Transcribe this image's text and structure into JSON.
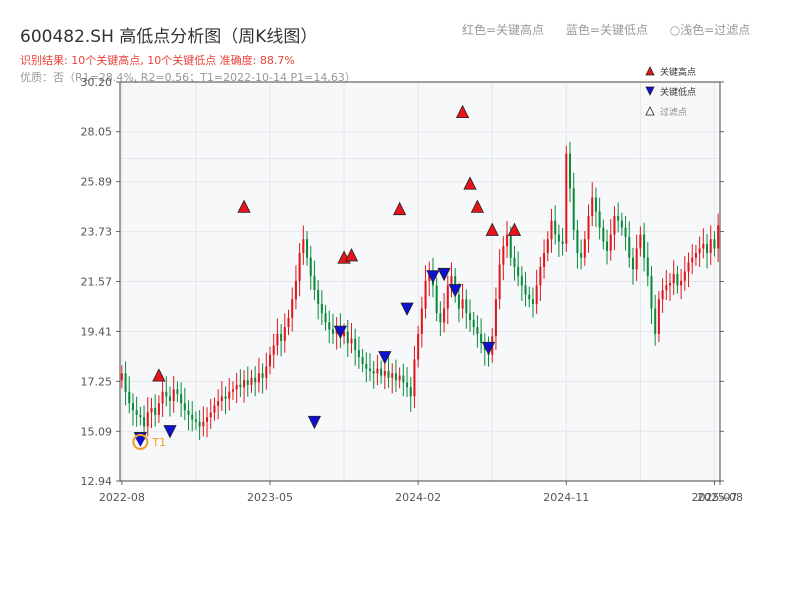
{
  "header": {
    "title": "600482.SH 高低点分析图（周K线图）",
    "result_line": "识别结果: 10个关键高点, 10个关键低点  准确度: 88.7%",
    "quality_line": "优质：否（R1=28.4%, R2=0.56；T1=2022-10-14 P1=14.63）"
  },
  "top_legend": {
    "red": "红色=关键高点",
    "blue": "蓝色=关键低点",
    "light": "○浅色=过滤点"
  },
  "colors": {
    "up": "#e0161c",
    "down": "#0a8a3a",
    "high_marker": "#e8141c",
    "low_marker": "#1010d0",
    "t1_ring": "#f0a020",
    "plot_bg": "#f7f8fa",
    "grid": "#e3e6ea"
  },
  "chart_data": {
    "type": "candlestick",
    "y_ticks": [
      "12.94",
      "15.09",
      "17.25",
      "19.41",
      "21.57",
      "23.73",
      "25.89",
      "28.05",
      "30.20"
    ],
    "ylim": [
      12.94,
      30.2
    ],
    "x_ticks": [
      {
        "label": "2022-08",
        "x": 0
      },
      {
        "label": "2023-05",
        "x": 40
      },
      {
        "label": "2024-02",
        "x": 80
      },
      {
        "label": "2024-11",
        "x": 120
      },
      {
        "label": "2025-07",
        "x": 160
      },
      {
        "label": "2025-08",
        "x": 164
      }
    ],
    "x_range": [
      -0.5,
      161.5
    ],
    "weekly_close_approx": [
      17.6,
      16.8,
      16.3,
      16.0,
      15.8,
      15.7,
      15.3,
      15.9,
      16.1,
      15.8,
      16.3,
      16.8,
      16.6,
      16.4,
      16.9,
      16.7,
      16.3,
      16.0,
      15.8,
      15.6,
      15.5,
      15.3,
      15.5,
      15.7,
      15.9,
      16.2,
      16.4,
      16.6,
      16.5,
      16.8,
      16.9,
      17.1,
      17.0,
      17.3,
      17.1,
      17.4,
      17.2,
      17.6,
      17.4,
      17.9,
      18.4,
      18.8,
      19.3,
      19.0,
      19.6,
      20.0,
      20.8,
      21.6,
      22.8,
      23.4,
      22.6,
      21.8,
      21.2,
      20.6,
      20.2,
      19.8,
      19.5,
      19.3,
      19.6,
      19.2,
      19.4,
      18.9,
      19.1,
      18.6,
      18.3,
      18.0,
      17.8,
      17.7,
      17.6,
      17.8,
      17.5,
      17.7,
      17.4,
      17.6,
      17.3,
      17.5,
      17.2,
      17.0,
      16.6,
      18.2,
      19.3,
      20.4,
      21.6,
      22.0,
      21.4,
      20.2,
      19.8,
      20.4,
      21.4,
      21.8,
      21.0,
      20.4,
      20.8,
      20.2,
      19.9,
      19.6,
      19.3,
      18.9,
      18.6,
      18.4,
      19.2,
      20.8,
      22.3,
      23.1,
      23.6,
      22.6,
      22.2,
      21.8,
      21.4,
      21.0,
      20.8,
      20.6,
      21.4,
      22.2,
      22.8,
      23.4,
      24.2,
      23.6,
      23.3,
      23.2,
      27.1,
      25.6,
      23.8,
      22.8,
      22.6,
      23.4,
      24.4,
      25.2,
      24.6,
      23.9,
      23.3,
      22.9,
      23.6,
      24.4,
      24.2,
      23.9,
      23.5,
      22.6,
      22.1,
      23.0,
      23.6,
      22.6,
      21.8,
      20.4,
      19.3,
      20.8,
      21.2,
      21.4,
      21.5,
      21.9,
      21.4,
      21.6,
      22.0,
      22.4,
      22.6,
      22.8,
      23.0,
      23.2,
      22.8,
      23.4,
      23.0,
      24.0
    ],
    "key_highs": [
      {
        "x": 10,
        "y": 17.0
      },
      {
        "x": 33,
        "y": 24.3
      },
      {
        "x": 60,
        "y": 22.1
      },
      {
        "x": 62,
        "y": 22.2
      },
      {
        "x": 75,
        "y": 24.2
      },
      {
        "x": 92,
        "y": 28.4
      },
      {
        "x": 94,
        "y": 25.3
      },
      {
        "x": 96,
        "y": 24.3
      },
      {
        "x": 100,
        "y": 23.3
      },
      {
        "x": 106,
        "y": 23.3
      }
    ],
    "key_lows": [
      {
        "x": 5,
        "y": 15.3
      },
      {
        "x": 13,
        "y": 15.6
      },
      {
        "x": 52,
        "y": 16.0
      },
      {
        "x": 59,
        "y": 19.9
      },
      {
        "x": 71,
        "y": 18.8
      },
      {
        "x": 77,
        "y": 20.9
      },
      {
        "x": 84,
        "y": 22.3
      },
      {
        "x": 87,
        "y": 22.4
      },
      {
        "x": 90,
        "y": 21.7
      },
      {
        "x": 99,
        "y": 19.2
      }
    ],
    "t1_label": "T1",
    "t1_point": {
      "x": 5,
      "y": 14.63
    },
    "legend": [
      {
        "label": "关键高点",
        "kind": "high"
      },
      {
        "label": "关键低点",
        "kind": "low"
      },
      {
        "label": "过滤点",
        "kind": "filtered"
      }
    ],
    "grid": true,
    "legend_position": "top-right"
  }
}
